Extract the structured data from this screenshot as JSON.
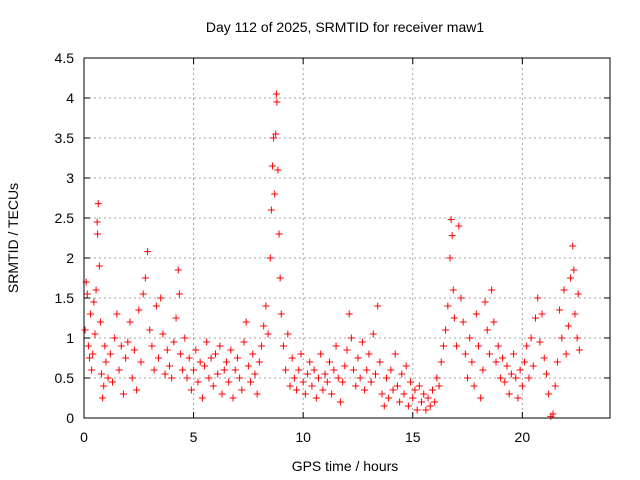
{
  "chart_data": {
    "type": "scatter",
    "title": "Day 112 of 2025, SRMTID for receiver maw1",
    "xlabel": "GPS time / hours",
    "ylabel": "SRMTID / TECUs",
    "xlim": [
      0,
      24
    ],
    "ylim": [
      0,
      4.5
    ],
    "xticks": [
      0,
      5,
      10,
      15,
      20
    ],
    "xtick_labels": [
      "0",
      "5",
      "10",
      "15",
      "20"
    ],
    "yticks": [
      0,
      0.5,
      1,
      1.5,
      2,
      2.5,
      3,
      3.5,
      4,
      4.5
    ],
    "ytick_labels": [
      "0",
      "0.5",
      "1",
      "1.5",
      "2",
      "2.5",
      "3",
      "3.5",
      "4",
      "4.5"
    ],
    "grid": true,
    "marker": "+",
    "color": "#ff0000",
    "series": [
      {
        "name": "maw1",
        "points": [
          [
            0.05,
            1.1
          ],
          [
            0.1,
            1.7
          ],
          [
            0.15,
            1.55
          ],
          [
            0.2,
            0.9
          ],
          [
            0.25,
            0.75
          ],
          [
            0.3,
            1.3
          ],
          [
            0.35,
            0.6
          ],
          [
            0.4,
            0.8
          ],
          [
            0.45,
            1.45
          ],
          [
            0.5,
            1.05
          ],
          [
            0.55,
            1.6
          ],
          [
            0.6,
            2.45
          ],
          [
            0.62,
            2.3
          ],
          [
            0.65,
            2.68
          ],
          [
            0.7,
            1.9
          ],
          [
            0.75,
            1.2
          ],
          [
            0.8,
            0.55
          ],
          [
            0.85,
            0.25
          ],
          [
            0.9,
            0.4
          ],
          [
            0.95,
            0.9
          ],
          [
            1.0,
            0.7
          ],
          [
            1.1,
            0.5
          ],
          [
            1.2,
            0.8
          ],
          [
            1.3,
            0.45
          ],
          [
            1.4,
            1.0
          ],
          [
            1.5,
            1.3
          ],
          [
            1.6,
            0.6
          ],
          [
            1.7,
            0.9
          ],
          [
            1.8,
            0.3
          ],
          [
            1.9,
            0.75
          ],
          [
            2.0,
            0.95
          ],
          [
            2.1,
            1.2
          ],
          [
            2.2,
            0.5
          ],
          [
            2.3,
            0.85
          ],
          [
            2.4,
            0.35
          ],
          [
            2.5,
            1.35
          ],
          [
            2.6,
            0.7
          ],
          [
            2.7,
            1.55
          ],
          [
            2.8,
            1.75
          ],
          [
            2.9,
            2.08
          ],
          [
            3.0,
            1.1
          ],
          [
            3.1,
            0.9
          ],
          [
            3.2,
            0.6
          ],
          [
            3.3,
            1.4
          ],
          [
            3.4,
            0.75
          ],
          [
            3.5,
            1.5
          ],
          [
            3.6,
            1.05
          ],
          [
            3.7,
            0.55
          ],
          [
            3.8,
            0.85
          ],
          [
            3.9,
            0.65
          ],
          [
            4.0,
            0.5
          ],
          [
            4.1,
            0.95
          ],
          [
            4.2,
            1.25
          ],
          [
            4.3,
            1.85
          ],
          [
            4.35,
            1.55
          ],
          [
            4.4,
            0.8
          ],
          [
            4.5,
            0.6
          ],
          [
            4.6,
            1.0
          ],
          [
            4.7,
            0.5
          ],
          [
            4.8,
            0.75
          ],
          [
            4.9,
            0.35
          ],
          [
            5.0,
            0.6
          ],
          [
            5.1,
            0.85
          ],
          [
            5.2,
            0.45
          ],
          [
            5.3,
            0.7
          ],
          [
            5.4,
            0.25
          ],
          [
            5.5,
            0.65
          ],
          [
            5.6,
            0.95
          ],
          [
            5.7,
            0.5
          ],
          [
            5.8,
            0.75
          ],
          [
            5.9,
            0.4
          ],
          [
            6.0,
            0.8
          ],
          [
            6.1,
            0.55
          ],
          [
            6.2,
            0.9
          ],
          [
            6.3,
            0.3
          ],
          [
            6.4,
            0.6
          ],
          [
            6.5,
            0.7
          ],
          [
            6.6,
            0.45
          ],
          [
            6.7,
            0.85
          ],
          [
            6.8,
            0.25
          ],
          [
            6.9,
            0.6
          ],
          [
            7.0,
            0.75
          ],
          [
            7.1,
            0.5
          ],
          [
            7.2,
            0.35
          ],
          [
            7.3,
            0.95
          ],
          [
            7.4,
            1.2
          ],
          [
            7.5,
            0.65
          ],
          [
            7.6,
            0.45
          ],
          [
            7.7,
            0.8
          ],
          [
            7.8,
            0.55
          ],
          [
            7.9,
            0.3
          ],
          [
            8.0,
            0.7
          ],
          [
            8.1,
            0.9
          ],
          [
            8.2,
            1.15
          ],
          [
            8.3,
            1.4
          ],
          [
            8.4,
            1.05
          ],
          [
            8.5,
            2.0
          ],
          [
            8.55,
            2.6
          ],
          [
            8.6,
            3.15
          ],
          [
            8.65,
            3.5
          ],
          [
            8.7,
            2.8
          ],
          [
            8.75,
            3.55
          ],
          [
            8.78,
            4.05
          ],
          [
            8.8,
            3.95
          ],
          [
            8.85,
            3.1
          ],
          [
            8.9,
            2.3
          ],
          [
            8.95,
            1.75
          ],
          [
            9.0,
            1.3
          ],
          [
            9.1,
            0.9
          ],
          [
            9.2,
            0.6
          ],
          [
            9.3,
            1.05
          ],
          [
            9.4,
            0.4
          ],
          [
            9.5,
            0.75
          ],
          [
            9.6,
            0.5
          ],
          [
            9.7,
            0.35
          ],
          [
            9.8,
            0.6
          ],
          [
            9.9,
            0.8
          ],
          [
            10.0,
            0.45
          ],
          [
            10.1,
            0.3
          ],
          [
            10.2,
            0.55
          ],
          [
            10.3,
            0.7
          ],
          [
            10.4,
            0.4
          ],
          [
            10.5,
            0.6
          ],
          [
            10.6,
            0.25
          ],
          [
            10.7,
            0.5
          ],
          [
            10.8,
            0.8
          ],
          [
            10.9,
            0.35
          ],
          [
            11.0,
            0.55
          ],
          [
            11.1,
            0.45
          ],
          [
            11.2,
            0.7
          ],
          [
            11.3,
            0.3
          ],
          [
            11.4,
            0.6
          ],
          [
            11.5,
            0.9
          ],
          [
            11.6,
            0.5
          ],
          [
            11.7,
            0.2
          ],
          [
            11.8,
            0.45
          ],
          [
            11.9,
            0.65
          ],
          [
            12.0,
            0.85
          ],
          [
            12.1,
            1.3
          ],
          [
            12.2,
            1.0
          ],
          [
            12.3,
            0.6
          ],
          [
            12.4,
            0.4
          ],
          [
            12.5,
            0.75
          ],
          [
            12.6,
            0.5
          ],
          [
            12.7,
            0.95
          ],
          [
            12.8,
            0.35
          ],
          [
            12.9,
            0.6
          ],
          [
            13.0,
            0.8
          ],
          [
            13.1,
            0.45
          ],
          [
            13.2,
            1.05
          ],
          [
            13.3,
            0.55
          ],
          [
            13.4,
            1.4
          ],
          [
            13.5,
            0.7
          ],
          [
            13.6,
            0.3
          ],
          [
            13.7,
            0.15
          ],
          [
            13.8,
            0.5
          ],
          [
            13.9,
            0.25
          ],
          [
            14.0,
            0.6
          ],
          [
            14.1,
            0.35
          ],
          [
            14.2,
            0.8
          ],
          [
            14.3,
            0.4
          ],
          [
            14.4,
            0.2
          ],
          [
            14.5,
            0.55
          ],
          [
            14.6,
            0.3
          ],
          [
            14.7,
            0.65
          ],
          [
            14.8,
            0.15
          ],
          [
            14.9,
            0.45
          ],
          [
            15.0,
            0.25
          ],
          [
            15.1,
            0.35
          ],
          [
            15.2,
            0.1
          ],
          [
            15.3,
            0.4
          ],
          [
            15.4,
            0.2
          ],
          [
            15.5,
            0.3
          ],
          [
            15.6,
            0.1
          ],
          [
            15.7,
            0.25
          ],
          [
            15.8,
            0.15
          ],
          [
            15.9,
            0.35
          ],
          [
            16.0,
            0.2
          ],
          [
            16.1,
            0.5
          ],
          [
            16.2,
            0.4
          ],
          [
            16.3,
            0.7
          ],
          [
            16.4,
            0.9
          ],
          [
            16.5,
            1.1
          ],
          [
            16.6,
            1.4
          ],
          [
            16.7,
            2.0
          ],
          [
            16.75,
            2.48
          ],
          [
            16.8,
            2.28
          ],
          [
            16.85,
            1.6
          ],
          [
            16.9,
            1.25
          ],
          [
            17.0,
            0.9
          ],
          [
            17.1,
            2.4
          ],
          [
            17.2,
            1.5
          ],
          [
            17.3,
            1.2
          ],
          [
            17.4,
            0.8
          ],
          [
            17.5,
            0.5
          ],
          [
            17.6,
            1.0
          ],
          [
            17.7,
            0.7
          ],
          [
            17.8,
            0.4
          ],
          [
            17.9,
            1.3
          ],
          [
            18.0,
            0.9
          ],
          [
            18.1,
            0.25
          ],
          [
            18.2,
            0.6
          ],
          [
            18.3,
            1.45
          ],
          [
            18.4,
            1.1
          ],
          [
            18.5,
            0.8
          ],
          [
            18.6,
            1.6
          ],
          [
            18.7,
            1.2
          ],
          [
            18.8,
            0.7
          ],
          [
            18.9,
            0.9
          ],
          [
            19.0,
            0.5
          ],
          [
            19.1,
            0.75
          ],
          [
            19.2,
            0.45
          ],
          [
            19.3,
            0.65
          ],
          [
            19.4,
            0.3
          ],
          [
            19.5,
            0.55
          ],
          [
            19.6,
            0.8
          ],
          [
            19.7,
            0.5
          ],
          [
            19.8,
            0.25
          ],
          [
            19.9,
            0.6
          ],
          [
            20.0,
            0.4
          ],
          [
            20.1,
            0.7
          ],
          [
            20.2,
            0.9
          ],
          [
            20.3,
            0.5
          ],
          [
            20.4,
            1.0
          ],
          [
            20.5,
            0.65
          ],
          [
            20.6,
            1.25
          ],
          [
            20.7,
            1.5
          ],
          [
            20.8,
            0.95
          ],
          [
            20.9,
            1.3
          ],
          [
            21.0,
            0.75
          ],
          [
            21.1,
            0.55
          ],
          [
            21.2,
            0.3
          ],
          [
            21.3,
            0.02
          ],
          [
            21.4,
            0.05
          ],
          [
            21.5,
            0.4
          ],
          [
            21.6,
            0.7
          ],
          [
            21.7,
            1.35
          ],
          [
            21.8,
            1.0
          ],
          [
            21.9,
            1.6
          ],
          [
            22.0,
            0.8
          ],
          [
            22.1,
            1.15
          ],
          [
            22.2,
            1.75
          ],
          [
            22.3,
            2.15
          ],
          [
            22.35,
            1.85
          ],
          [
            22.4,
            1.3
          ],
          [
            22.5,
            1.0
          ],
          [
            22.55,
            1.55
          ],
          [
            22.6,
            0.85
          ]
        ]
      }
    ]
  }
}
